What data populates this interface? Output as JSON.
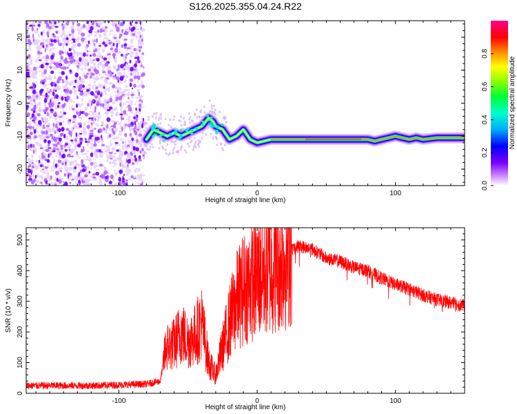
{
  "title": "S126.2025.355.04.24.R22",
  "chart_data": [
    {
      "type": "heatmap",
      "xlabel": "Height of straight line (km)",
      "ylabel": "Frequency (Hz)",
      "xlim": [
        -167,
        150
      ],
      "ylim": [
        -25,
        25
      ],
      "xticks": [
        -100,
        0,
        100
      ],
      "yticks": [
        -20,
        -10,
        0,
        10,
        20
      ],
      "colorbar": {
        "label": "Normalized spectral amplitude",
        "range": [
          0.0,
          1.0
        ],
        "ticks": [
          "0.0",
          "0.2",
          "0.4",
          "0.6",
          "0.8"
        ],
        "tick_values": [
          0.0,
          0.2,
          0.4,
          0.6,
          0.8
        ],
        "colormap": [
          "#ffffff",
          "#cc66ff",
          "#6600ff",
          "#0000ff",
          "#00ccff",
          "#00ff66",
          "#ccff00",
          "#ffaa00",
          "#ff0033",
          "#ff0099"
        ]
      },
      "noise_region_x": [
        -167,
        -82
      ],
      "ridge": {
        "x": [
          -80,
          -75,
          -70,
          -65,
          -60,
          -55,
          -50,
          -45,
          -40,
          -35,
          -32,
          -30,
          -25,
          -20,
          -15,
          -10,
          -5,
          0,
          10,
          20,
          40,
          60,
          80,
          85,
          90,
          95,
          100,
          105,
          110,
          115,
          120,
          130,
          150
        ],
        "y": [
          -11,
          -8,
          -9,
          -10,
          -9,
          -10,
          -9,
          -8,
          -7,
          -4.5,
          -5.5,
          -7,
          -8,
          -11,
          -10,
          -8,
          -11,
          -12,
          -11,
          -11,
          -11,
          -11,
          -11,
          -11.5,
          -11,
          -10.5,
          -10,
          -10.5,
          -11,
          -10.5,
          -11,
          -10.5,
          -10.5
        ]
      }
    },
    {
      "type": "line",
      "xlabel": "Height of straight line (km)",
      "ylabel": "SNR (10 * v/v)",
      "xlim": [
        -167,
        150
      ],
      "ylim": [
        0,
        540
      ],
      "xticks": [
        -100,
        0,
        100
      ],
      "yticks": [
        0,
        100,
        200,
        300,
        400,
        500
      ],
      "color": "#ff0000",
      "envelope": {
        "x": [
          -167,
          -120,
          -80,
          -70,
          -66,
          -60,
          -55,
          -50,
          -45,
          -40,
          -35,
          -30,
          -25,
          -20,
          -15,
          -10,
          -5,
          0,
          10,
          20,
          25,
          30,
          35,
          40,
          50,
          60,
          70,
          80,
          90,
          100,
          110,
          120,
          130,
          140,
          150
        ],
        "y": [
          25,
          25,
          30,
          40,
          150,
          160,
          200,
          170,
          190,
          230,
          100,
          60,
          150,
          230,
          300,
          340,
          360,
          380,
          410,
          440,
          470,
          480,
          475,
          470,
          440,
          430,
          410,
          400,
          375,
          355,
          340,
          320,
          305,
          295,
          285
        ]
      }
    }
  ]
}
